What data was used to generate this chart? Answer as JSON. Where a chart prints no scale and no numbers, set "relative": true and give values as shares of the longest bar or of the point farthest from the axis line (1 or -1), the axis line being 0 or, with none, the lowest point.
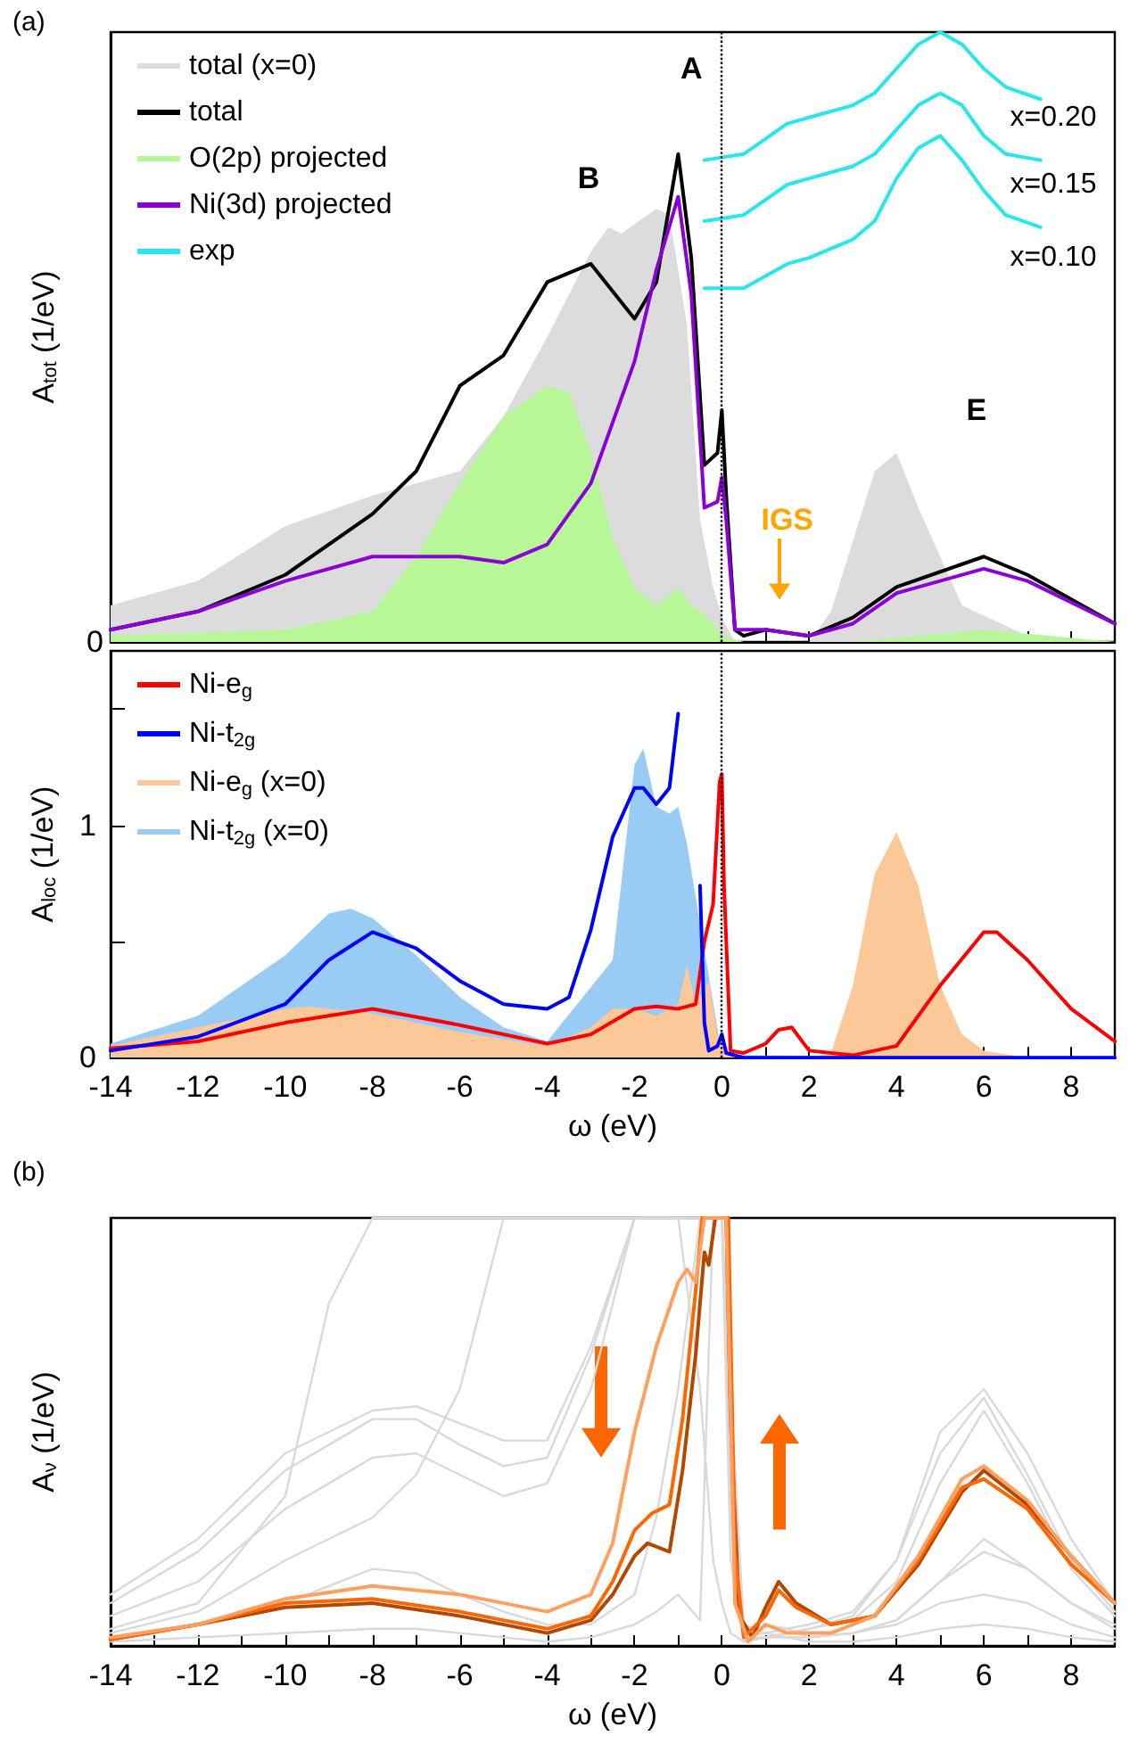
{
  "chart_data": [
    {
      "type": "line",
      "title": "(a)",
      "ylabel": "A$_{tot}$ (1/eV)",
      "relative": true,
      "xlim": [
        -14,
        9
      ],
      "xticks": [
        -14,
        {
          "value": -13,
          "label": null
        },
        -12,
        {
          "value": -11,
          "label": null
        },
        -10,
        {
          "value": -9,
          "label": null
        },
        -8,
        {
          "value": -7,
          "label": null
        },
        -6,
        {
          "value": -5,
          "label": null
        },
        -4,
        {
          "value": -3,
          "label": null
        },
        -2,
        {
          "value": -1,
          "label": null
        },
        0,
        {
          "value": 1,
          "label": null
        },
        2,
        {
          "value": 3,
          "label": null
        },
        4,
        {
          "value": 5,
          "label": null
        },
        6,
        {
          "value": 7,
          "label": null
        },
        8
      ],
      "tick_labels": false,
      "legend": "top left",
      "marker": "none",
      "ref_lines": [
        {
          "axis": "x",
          "value": 0,
          "color": "#000000",
          "line_style": "dotted"
        }
      ],
      "annotations": [
        "0",
        "A",
        "B",
        "E",
        "IGS",
        "x=0.20",
        "x=0.15",
        "x=0.10"
      ],
      "series": [
        {
          "name": "total (x=0)",
          "type": "area",
          "color": "#dcdcdc",
          "x": [
            -14,
            -12,
            -10,
            -8,
            -6,
            -5,
            -4,
            -3,
            -2.6,
            -2.3,
            -1.5,
            -1.2,
            -0.8,
            -0.5,
            -0.2,
            0,
            0.3,
            2,
            2.5,
            3.5,
            4,
            4.5,
            5.5,
            7,
            9
          ],
          "values": [
            0.06,
            0.1,
            0.19,
            0.24,
            0.28,
            0.37,
            0.5,
            0.64,
            0.68,
            0.67,
            0.71,
            0.7,
            0.52,
            0.2,
            0.09,
            0.04,
            0,
            0,
            0.05,
            0.28,
            0.31,
            0.22,
            0.06,
            0.01,
            0
          ]
        },
        {
          "name": "total",
          "color": "#000000",
          "x": [
            -14,
            -12,
            -10,
            -8,
            -7,
            -6,
            -5,
            -4,
            -3,
            -2,
            -1.5,
            -1,
            -0.7,
            -0.4,
            -0.1,
            0,
            0.1,
            0.3,
            0.5,
            1,
            2,
            3,
            4,
            6,
            7,
            9
          ],
          "values": [
            0.02,
            0.05,
            0.11,
            0.21,
            0.28,
            0.42,
            0.47,
            0.59,
            0.62,
            0.53,
            0.59,
            0.8,
            0.63,
            0.29,
            0.31,
            0.38,
            0.24,
            0.02,
            0.01,
            0.02,
            0.01,
            0.04,
            0.09,
            0.14,
            0.11,
            0.03
          ]
        },
        {
          "name": "O(2p) projected",
          "type": "area",
          "color": "#b7f797",
          "x": [
            -14,
            -10,
            -8,
            -7,
            -6,
            -5,
            -4,
            -3.5,
            -3,
            -2.5,
            -2,
            -1.5,
            -1,
            -0.7,
            -0.3,
            0,
            0.5,
            3,
            6,
            9
          ],
          "values": [
            0.01,
            0.02,
            0.05,
            0.14,
            0.26,
            0.37,
            0.42,
            0.41,
            0.31,
            0.17,
            0.09,
            0.06,
            0.09,
            0.06,
            0.04,
            0.01,
            0,
            0,
            0.02,
            0
          ]
        },
        {
          "name": "Ni(3d) projected",
          "color": "#8b00d6",
          "x": [
            -14,
            -12,
            -10,
            -8,
            -6,
            -5,
            -4,
            -3,
            -2,
            -1.5,
            -1,
            -0.7,
            -0.4,
            -0.1,
            0,
            0.1,
            0.3,
            1,
            2,
            3,
            4,
            6,
            7,
            9
          ],
          "values": [
            0.02,
            0.05,
            0.1,
            0.14,
            0.14,
            0.13,
            0.16,
            0.26,
            0.46,
            0.61,
            0.73,
            0.57,
            0.22,
            0.23,
            0.27,
            0.2,
            0.02,
            0.02,
            0.01,
            0.03,
            0.08,
            0.12,
            0.1,
            0.03
          ]
        },
        {
          "name": "exp",
          "color": "#28e6ee",
          "x": [
            -0.4,
            0.5,
            1.5,
            2,
            3,
            3.5,
            4,
            4.5,
            5,
            5.5,
            6,
            6.5,
            7.3
          ],
          "values": [
            0.79,
            0.8,
            0.85,
            0.86,
            0.88,
            0.9,
            0.94,
            0.98,
            1,
            0.98,
            0.94,
            0.91,
            0.89
          ]
        },
        {
          "color": "#28e6ee",
          "x": [
            -0.4,
            0.5,
            1.5,
            2,
            3,
            3.5,
            4,
            4.5,
            5,
            5.5,
            6,
            6.5,
            7.3
          ],
          "values": [
            0.69,
            0.7,
            0.75,
            0.76,
            0.78,
            0.8,
            0.84,
            0.88,
            0.9,
            0.88,
            0.83,
            0.8,
            0.79
          ]
        },
        {
          "color": "#28e6ee",
          "x": [
            -0.4,
            0.5,
            1.5,
            2,
            3,
            3.5,
            4,
            4.5,
            5,
            5.5,
            6,
            6.5,
            7.3
          ],
          "values": [
            0.58,
            0.58,
            0.62,
            0.63,
            0.66,
            0.69,
            0.76,
            0.81,
            0.83,
            0.79,
            0.74,
            0.7,
            0.68
          ]
        }
      ]
    },
    {
      "type": "line",
      "xlabel": "ω (eV)",
      "ylabel": "A$_{loc}$ (1/eV)",
      "xlim": [
        -14,
        9
      ],
      "ylim": [
        0,
        1.75
      ],
      "yticks": [
        0,
        {
          "value": 0.5,
          "label": null
        },
        1,
        {
          "value": 1.5,
          "label": null
        }
      ],
      "xticks": [
        -14,
        {
          "value": -13,
          "label": null
        },
        -12,
        {
          "value": -11,
          "label": null
        },
        -10,
        {
          "value": -9,
          "label": null
        },
        -8,
        {
          "value": -7,
          "label": null
        },
        -6,
        {
          "value": -5,
          "label": null
        },
        -4,
        {
          "value": -3,
          "label": null
        },
        -2,
        {
          "value": -1,
          "label": null
        },
        0,
        {
          "value": 1,
          "label": null
        },
        2,
        {
          "value": 3,
          "label": null
        },
        4,
        {
          "value": 5,
          "label": null
        },
        6,
        {
          "value": 7,
          "label": null
        },
        8
      ],
      "legend": "top left",
      "marker": "none",
      "ref_lines": [
        {
          "axis": "x",
          "value": 0,
          "color": "#000000",
          "line_style": "dotted"
        }
      ],
      "series": [
        {
          "name": "Ni-e$_{g}$",
          "color": "#ff0000",
          "x": [
            -14,
            -12,
            -10,
            -8,
            -6,
            -4,
            -3,
            -2,
            -1.5,
            -1,
            -0.6,
            -0.4,
            -0.2,
            -0.05,
            0,
            0.05,
            0.2,
            0.5,
            1,
            1.3,
            1.6,
            2,
            3,
            4,
            5,
            6,
            6.3,
            7,
            8,
            9
          ],
          "values": [
            0.04,
            0.07,
            0.15,
            0.21,
            0.14,
            0.06,
            0.1,
            0.21,
            0.22,
            0.21,
            0.23,
            0.5,
            0.66,
            1.19,
            1.22,
            0.74,
            0.03,
            0.02,
            0.06,
            0.12,
            0.13,
            0.03,
            0.01,
            0.05,
            0.31,
            0.54,
            0.54,
            0.42,
            0.21,
            0.07
          ]
        },
        {
          "name": "Ni-t$_{2g}$",
          "color": "#0000ff",
          "x": [
            -14,
            -12,
            -10,
            -9,
            -8,
            -7,
            -6,
            -5,
            -4,
            -3.5,
            -3,
            -2.5,
            -2,
            -1.8,
            -1.5,
            -1.2,
            -1,
            -0.85,
            -0.65,
            -0.5,
            -0.4,
            -0.3,
            -0.1,
            0,
            0.1,
            0.5,
            9
          ],
          "values": [
            0.03,
            0.09,
            0.23,
            0.42,
            0.54,
            0.47,
            0.33,
            0.23,
            0.21,
            0.26,
            0.55,
            0.95,
            1.16,
            1.16,
            1.09,
            1.16,
            1.48,
            null,
            null,
            0.74,
            0.15,
            0.03,
            0.05,
            0.1,
            0.02,
            0,
            0
          ]
        },
        {
          "name": "Ni-e$_{g}$ (x=0)",
          "type": "area",
          "color": "#fdc898",
          "x": [
            -14,
            -12,
            -10,
            -9.5,
            -8,
            -6,
            -4,
            -3,
            -2.5,
            -2,
            -1.5,
            -1,
            -0.8,
            -0.6,
            -0.3,
            -0.1,
            0.1,
            2,
            2.5,
            3,
            3.5,
            4,
            4.5,
            5,
            5.5,
            6,
            7,
            9
          ],
          "values": [
            0.05,
            0.13,
            0.21,
            0.22,
            0.19,
            0.11,
            0.05,
            0.13,
            0.21,
            0.21,
            0.18,
            0.23,
            0.4,
            0.23,
            0.33,
            0.1,
            0.01,
            0,
            0.02,
            0.31,
            0.79,
            0.97,
            0.74,
            0.31,
            0.1,
            0.03,
            0,
            0
          ]
        },
        {
          "name": "Ni-t$_{2g}$ (x=0)",
          "type": "area",
          "color": "#99ccf5",
          "x": [
            -14,
            -12,
            -10,
            -9,
            -8.5,
            -8,
            -7,
            -6,
            -5,
            -4,
            -2.5,
            -2,
            -1.8,
            -1.5,
            -1.2,
            -1,
            -0.8,
            0,
            9
          ],
          "values": [
            0.06,
            0.18,
            0.44,
            0.62,
            0.64,
            0.6,
            0.44,
            0.26,
            0.13,
            0.07,
            0.42,
            1.26,
            1.33,
            1.08,
            1.05,
            1.08,
            0.92,
            0.01,
            0
          ]
        }
      ]
    },
    {
      "type": "line",
      "title": "(b)",
      "xlabel": "ω (eV)",
      "ylabel": "A$_{ν}$ (1/eV)",
      "relative": true,
      "xlim": [
        -14,
        9
      ],
      "xticks": [
        -14,
        {
          "value": -13,
          "label": null
        },
        -12,
        {
          "value": -11,
          "label": null
        },
        -10,
        {
          "value": -9,
          "label": null
        },
        -8,
        {
          "value": -7,
          "label": null
        },
        -6,
        {
          "value": -5,
          "label": null
        },
        -4,
        {
          "value": -3,
          "label": null
        },
        -2,
        {
          "value": -1,
          "label": null
        },
        0,
        {
          "value": 1,
          "label": null
        },
        2,
        {
          "value": 3,
          "label": null
        },
        4,
        {
          "value": 5,
          "label": null
        },
        6,
        {
          "value": 7,
          "label": null
        },
        8
      ],
      "tick_labels": "x",
      "marker": "none",
      "x": [
        -14,
        -12,
        -10,
        -9,
        -8,
        -7,
        -6,
        -5,
        -4,
        -3,
        -2,
        -1.5,
        -1,
        -0.5,
        -0.2,
        0,
        0.2,
        0.5,
        1,
        1.5,
        2,
        3,
        4,
        5,
        6,
        7,
        8,
        9
      ],
      "series": [
        {
          "color": "#d9d9d9",
          "values": [
            0.1,
            0.22,
            0.41,
            0.47,
            0.53,
            0.53,
            0.47,
            0.42,
            0.44,
            0.68,
            1,
            1,
            1,
            1,
            1,
            1,
            0.4,
            0.02,
            0.03,
            0.04,
            0.05,
            0.08,
            0.2,
            0.45,
            0.58,
            0.4,
            0.2,
            0.08
          ]
        },
        {
          "color": "#d9d9d9",
          "values": [
            0.07,
            0.15,
            0.32,
            0.38,
            0.44,
            0.45,
            0.4,
            0.35,
            0.38,
            0.6,
            1,
            1,
            1,
            1,
            1,
            1,
            0.3,
            0.01,
            0.02,
            0.03,
            0.04,
            0.06,
            0.15,
            0.38,
            0.55,
            0.38,
            0.18,
            0.07
          ]
        },
        {
          "color": "#d9d9d9",
          "values": [
            0.04,
            0.1,
            0.35,
            0.8,
            1,
            1,
            1,
            1,
            1,
            1,
            1,
            1,
            1,
            0.6,
            0.2,
            0.1,
            0.03,
            0.01,
            0.02,
            0.02,
            0.02,
            0.03,
            0.06,
            0.15,
            0.25,
            0.18,
            0.1,
            0.05
          ]
        },
        {
          "color": "#d9d9d9",
          "values": [
            0.02,
            0.05,
            0.1,
            0.14,
            0.18,
            0.17,
            0.12,
            0.08,
            0.05,
            0.05,
            0.12,
            0.3,
            0.6,
            1,
            1,
            1,
            0.5,
            0.02,
            0.05,
            0.04,
            0.02,
            0.03,
            0.05,
            0.1,
            0.12,
            0.1,
            0.05,
            0.02
          ]
        },
        {
          "color": "#d9d9d9",
          "values": [
            0.01,
            0.02,
            0.03,
            0.035,
            0.04,
            0.04,
            0.03,
            0.02,
            0.01,
            0.02,
            0.05,
            0.08,
            0.12,
            0.06,
            1,
            1,
            0.6,
            0.05,
            0.03,
            0.02,
            0.01,
            0.01,
            0.02,
            0.04,
            0.05,
            0.04,
            0.02,
            0.01
          ]
        },
        {
          "color": "#d9d9d9",
          "values": [
            0.12,
            0.25,
            0.45,
            0.5,
            0.55,
            0.56,
            0.52,
            0.48,
            0.48,
            0.7,
            1,
            1,
            1,
            1,
            1,
            1,
            0.35,
            0.02,
            0.02,
            0.03,
            0.04,
            0.07,
            0.2,
            0.5,
            0.6,
            0.45,
            0.25,
            0.1
          ]
        },
        {
          "color": "#d9d9d9",
          "values": [
            0.03,
            0.08,
            0.2,
            0.25,
            0.3,
            0.4,
            0.6,
            1,
            1,
            1,
            1,
            1,
            1,
            1,
            1,
            1,
            0.2,
            0.01,
            0.02,
            0.02,
            0.02,
            0.03,
            0.06,
            0.15,
            0.22,
            0.18,
            0.1,
            0.04
          ]
        },
        {
          "color": "#b34700",
          "x": [
            -14,
            -12,
            -10,
            -8,
            -6,
            -4,
            -3,
            -2.5,
            -2,
            -1.7,
            -1.2,
            -0.9,
            -0.6,
            -0.4,
            -0.3,
            -0.15,
            0.1,
            0.2,
            0.4,
            0.7,
            1,
            1.3,
            1.7,
            2.5,
            3.5,
            4.5,
            5.5,
            6,
            7,
            8,
            9
          ],
          "values": [
            0.015,
            0.05,
            0.09,
            0.1,
            0.07,
            0.03,
            0.06,
            0.12,
            0.21,
            0.24,
            0.22,
            0.41,
            0.68,
            0.92,
            0.89,
            1,
            1,
            0.53,
            0.07,
            0.02,
            0.09,
            0.15,
            0.1,
            0.05,
            0.07,
            0.19,
            0.36,
            0.41,
            0.33,
            0.21,
            0.1
          ]
        },
        {
          "color": "#ff6600",
          "x": [
            -14,
            -12,
            -10,
            -8,
            -6,
            -4,
            -3,
            -2.5,
            -2,
            -1.6,
            -1.2,
            -0.9,
            -0.6,
            -0.45,
            0.15,
            0.3,
            0.5,
            1,
            1.3,
            1.7,
            2.5,
            3.5,
            4.5,
            5.5,
            6,
            7,
            8,
            9
          ],
          "values": [
            0.015,
            0.05,
            0.1,
            0.11,
            0.08,
            0.04,
            0.07,
            0.15,
            0.27,
            0.31,
            0.33,
            0.53,
            0.83,
            1,
            1,
            0.22,
            0.02,
            0.07,
            0.13,
            0.09,
            0.05,
            0.07,
            0.2,
            0.37,
            0.39,
            0.32,
            0.19,
            0.1
          ]
        },
        {
          "color": "#ffa060",
          "x": [
            -14,
            -12,
            -10,
            -8,
            -6,
            -4,
            -3,
            -2.5,
            -2,
            -1.5,
            -1,
            -0.8,
            -0.6,
            -0.4,
            0.1,
            0.3,
            0.6,
            1,
            1.5,
            2.5,
            3.5,
            4.5,
            5.5,
            6,
            7,
            8,
            9
          ],
          "values": [
            0.02,
            0.05,
            0.11,
            0.14,
            0.12,
            0.08,
            0.12,
            0.24,
            0.5,
            0.7,
            0.85,
            0.88,
            0.85,
            1,
            1,
            0.1,
            0.01,
            0.05,
            0.03,
            0.03,
            0.07,
            0.21,
            0.39,
            0.42,
            0.34,
            0.21,
            0.1
          ]
        }
      ]
    }
  ]
}
